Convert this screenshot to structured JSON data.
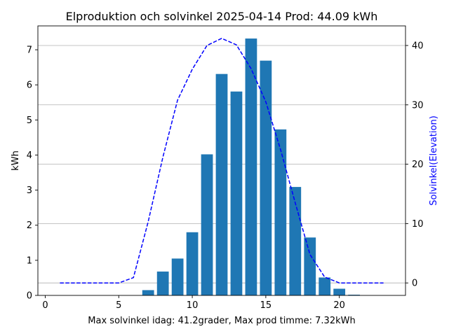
{
  "chart_data": {
    "type": "bar",
    "title": "Elproduktion och solvinkel 2025-04-14 Prod: 44.09 kWh",
    "xlabel": "Max solvinkel idag: 41.2grader, Max prod timme: 7.32kWh",
    "ylabel": "kWh",
    "y2label": "Solvinkel(Elevation)",
    "xlim": [
      -0.5,
      24.5
    ],
    "ylim": [
      0,
      7.68
    ],
    "y2lim": [
      -2.1,
      43.3
    ],
    "xticks": [
      0,
      5,
      10,
      15,
      20
    ],
    "yticks": [
      0,
      1,
      2,
      3,
      4,
      5,
      6,
      7
    ],
    "y2ticks": [
      0,
      10,
      20,
      30,
      40
    ],
    "grid": "horizontal lines at secondary-axis ticks",
    "series": [
      {
        "kind": "bar",
        "axis": "left",
        "color": "#1f77b4",
        "x": [
          6,
          7,
          8,
          9,
          10,
          11,
          12,
          13,
          14,
          15,
          16,
          17,
          18,
          19,
          20,
          21,
          22,
          23
        ],
        "values": [
          0.0,
          0.15,
          0.68,
          1.05,
          1.8,
          4.02,
          6.31,
          5.81,
          7.32,
          6.69,
          4.73,
          3.09,
          1.65,
          0.51,
          0.19,
          0.02,
          0.0,
          0.0
        ]
      },
      {
        "kind": "line",
        "axis": "right",
        "style": "dashed",
        "color": "#0000ff",
        "x": [
          1,
          2,
          3,
          4,
          5,
          6,
          7,
          8,
          9,
          10,
          11,
          12,
          13,
          14,
          15,
          16,
          17,
          18,
          19,
          20,
          21,
          22,
          23
        ],
        "values": [
          0,
          0,
          0,
          0,
          0,
          0.9,
          10.3,
          21.2,
          30.8,
          36.0,
          40.0,
          41.2,
          40.1,
          36.1,
          30.5,
          22.5,
          13.5,
          4.8,
          1.0,
          0,
          0,
          0,
          0
        ]
      }
    ]
  }
}
